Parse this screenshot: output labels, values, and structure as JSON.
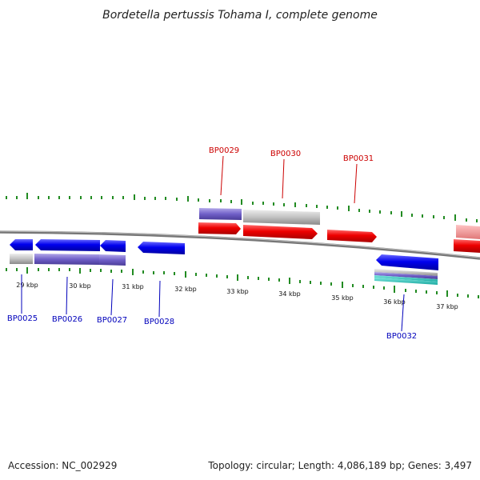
{
  "title": "Bordetella pertussis Tohama I, complete genome",
  "footer": {
    "accession": "Accession: NC_002929",
    "summary": "Topology: circular; Length: 4,086,189 bp; Genes: 3,497"
  },
  "scale": {
    "labels": [
      "29 kbp",
      "30 kbp",
      "31 kbp",
      "32 kbp",
      "33 kbp",
      "34 kbp",
      "35 kbp",
      "36 kbp",
      "37 kbp"
    ]
  },
  "genes": {
    "forward": [
      {
        "name": "BP0029",
        "label": "BP0029"
      },
      {
        "name": "BP0030",
        "label": "BP0030"
      },
      {
        "name": "BP0031",
        "label": "BP0031"
      }
    ],
    "reverse": [
      {
        "name": "BP0025",
        "label": "BP0025"
      },
      {
        "name": "BP0026",
        "label": "BP0026"
      },
      {
        "name": "BP0027",
        "label": "BP0027"
      },
      {
        "name": "BP0028",
        "label": "BP0028"
      },
      {
        "name": "BP0032",
        "label": "BP0032"
      }
    ]
  },
  "colors": {
    "forward_cds": "#ee0000",
    "reverse_cds": "#0000ee",
    "tick": "#228b22",
    "backbone": "#888888",
    "label_forward": "#cc0000",
    "label_reverse": "#0000bb",
    "annotation_purple": "#7060c8",
    "annotation_gray": "#bbbbbb",
    "annotation_teal": "#20b2aa"
  }
}
